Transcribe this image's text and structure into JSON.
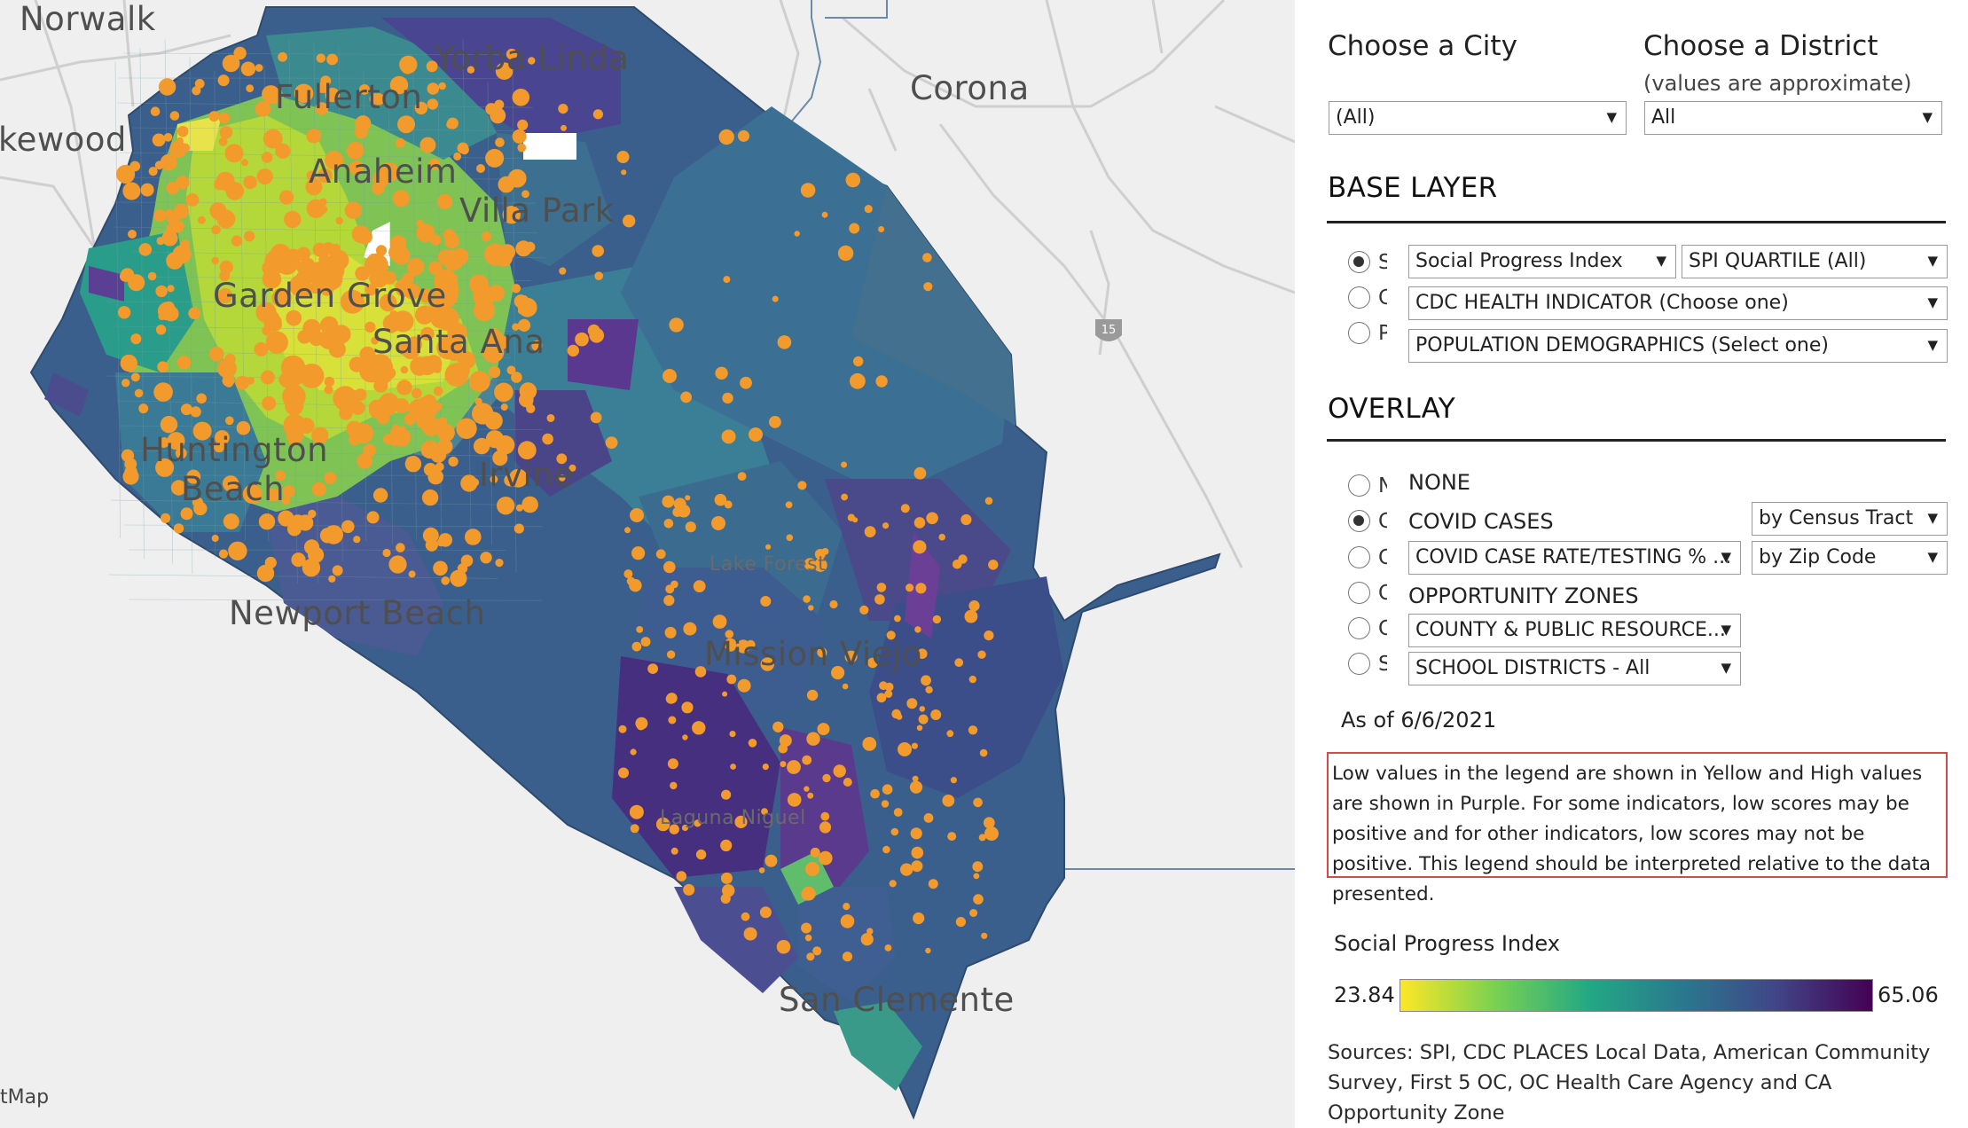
{
  "map": {
    "places": {
      "norwalk": "Norwalk",
      "lakewood": "kewood",
      "yorba_linda": "Yorba Linda",
      "fullerton": "Fullerton",
      "anaheim": "Anaheim",
      "corona": "Corona",
      "villa_park": "Villa Park",
      "garden_grove": "Garden Grove",
      "santa_ana": "Santa Ana",
      "huntington_beach_1": "Huntington",
      "huntington_beach_2": "Beach",
      "irvine": "Irvine",
      "lake_forest": "Lake Forest",
      "newport_beach": "Newport Beach",
      "mission_viejo": "Mission Viejo",
      "laguna_niguel": "Laguna Niguel",
      "san_clemente": "San Clemente"
    },
    "highway_shield": "15",
    "attribution": "tMap"
  },
  "filters": {
    "city": {
      "title": "Choose a City",
      "value": "(All)"
    },
    "district": {
      "title": "Choose a District",
      "subtitle": "(values are approximate)",
      "value": "All"
    }
  },
  "base_layer": {
    "title": "BASE LAYER",
    "options": [
      {
        "cut_label": "S",
        "selected": true,
        "dropdown": "Social Progress Index",
        "dropdown2": "SPI QUARTILE (All)"
      },
      {
        "cut_label": "C",
        "selected": false,
        "dropdown": "CDC HEALTH INDICATOR (Choose one)"
      },
      {
        "cut_label": "P",
        "selected": false,
        "dropdown": "POPULATION DEMOGRAPHICS (Select one)"
      }
    ]
  },
  "overlay": {
    "title": "OVERLAY",
    "options": [
      {
        "cut_label": "N",
        "selected": false,
        "label": "NONE"
      },
      {
        "cut_label": "C",
        "selected": true,
        "label": "COVID CASES",
        "dropdown": "by Census Tract"
      },
      {
        "cut_label": "C",
        "selected": false,
        "dropdown": "COVID CASE RATE/TESTING % ...",
        "dropdown2": "by Zip Code"
      },
      {
        "cut_label": "O",
        "selected": false,
        "label": "OPPORTUNITY ZONES"
      },
      {
        "cut_label": "C",
        "selected": false,
        "dropdown": "COUNTY & PUBLIC RESOURCE..."
      },
      {
        "cut_label": "S",
        "selected": false,
        "dropdown": "SCHOOL DISTRICTS - All"
      }
    ],
    "as_of": "As of 6/6/2021"
  },
  "note": "Low values in the legend are shown in Yellow and High values are shown in Purple. For some indicators, low scores may be positive and for other indicators, low scores may not be positive. This legend should be interpreted relative to the data presented.",
  "legend": {
    "title": "Social Progress Index",
    "min": "23.84",
    "max": "65.06",
    "colors": [
      "#fde725",
      "#7ad151",
      "#22a884",
      "#2a788e",
      "#414487",
      "#440154"
    ]
  },
  "sources": "Sources: SPI, CDC PLACES Local Data, American Community Survey, First 5 OC, OC Health Care Agency and CA Opportunity Zone"
}
